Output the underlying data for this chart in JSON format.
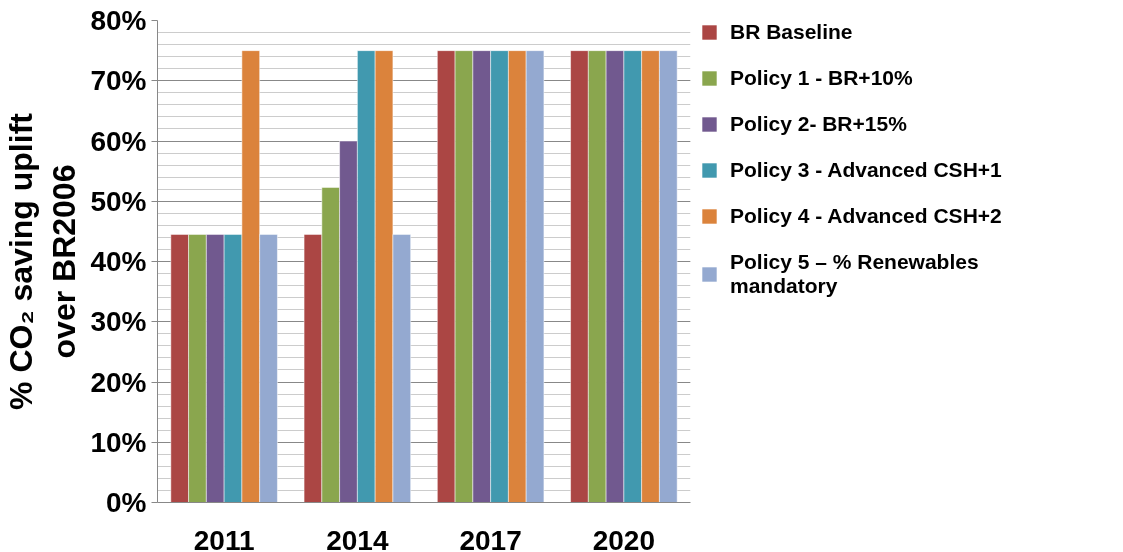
{
  "chart_data": {
    "type": "bar",
    "ylabel": "% CO₂ saving uplift over BR2006",
    "categories": [
      "2011",
      "2014",
      "2017",
      "2020"
    ],
    "series": [
      {
        "name": "BR Baseline",
        "color": "#ab4644",
        "values": [
          44.5,
          44.5,
          75,
          75
        ]
      },
      {
        "name": "Policy 1 - BR+10%",
        "color": "#8aa64e",
        "values": [
          44.5,
          52.3,
          75,
          75
        ]
      },
      {
        "name": "Policy 2- BR+15%",
        "color": "#71598f",
        "values": [
          44.5,
          60,
          75,
          75
        ]
      },
      {
        "name": "Policy 3 - Advanced CSH+1",
        "color": "#4199af",
        "values": [
          44.5,
          75,
          75,
          75
        ]
      },
      {
        "name": "Policy 4 - Advanced CSH+2",
        "color": "#db833c",
        "values": [
          75,
          75,
          75,
          75
        ]
      },
      {
        "name": "Policy 5 – % Renewables mandatory",
        "color": "#94a9d0",
        "values": [
          44.5,
          44.5,
          75,
          75
        ]
      }
    ],
    "ylim": [
      0,
      80
    ],
    "yticks": [
      {
        "value": 0,
        "label": "0%"
      },
      {
        "value": 10,
        "label": "10%"
      },
      {
        "value": 20,
        "label": "20%"
      },
      {
        "value": 30,
        "label": "30%"
      },
      {
        "value": 40,
        "label": "40%"
      },
      {
        "value": 50,
        "label": "50%"
      },
      {
        "value": 60,
        "label": "60%"
      },
      {
        "value": 70,
        "label": "70%"
      },
      {
        "value": 80,
        "label": "80%"
      }
    ],
    "grid": "y",
    "legend": "right"
  }
}
